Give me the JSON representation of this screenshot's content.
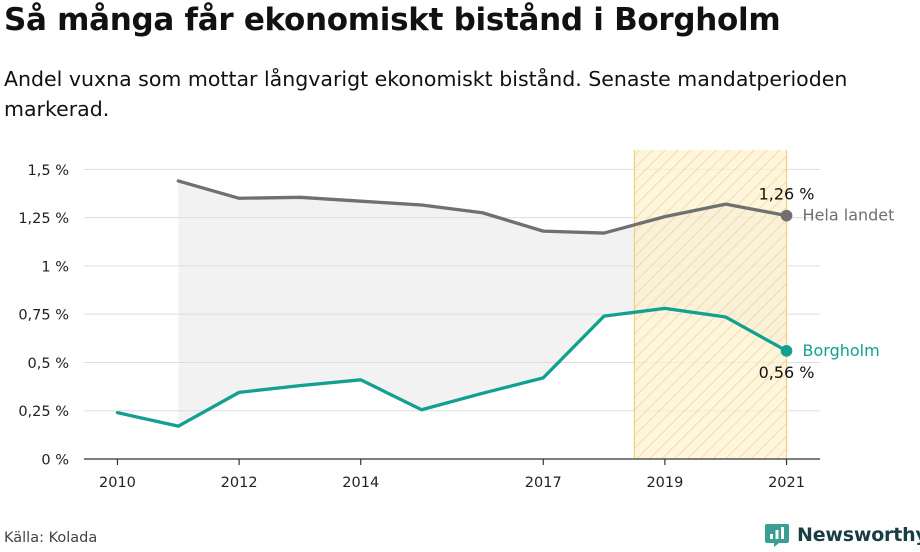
{
  "header": {
    "title": "Så många får ekonomiskt bistånd i Borgholm",
    "subtitle": "Andel vuxna som mottar långvarigt ekonomiskt bistånd. Senaste mandatperioden markerad."
  },
  "footer": {
    "source": "Källa: Kolada",
    "brand": "Newsworthy"
  },
  "icons": {
    "brand_logo": "newsworthy-logo-icon"
  },
  "colors": {
    "national": "#707070",
    "local": "#12a090",
    "highlight_fill": "#fbe8b8",
    "highlight_border": "#f2cf7a",
    "band_fill": "#f2f2f2",
    "grid": "#dddddd"
  },
  "chart_data": {
    "type": "line",
    "x": [
      2010,
      2011,
      2012,
      2013,
      2014,
      2015,
      2016,
      2017,
      2018,
      2019,
      2020,
      2021
    ],
    "x_ticks": [
      2010,
      2012,
      2014,
      2017,
      2019,
      2021
    ],
    "y_ticks": [
      {
        "value": 0,
        "label": "0 %"
      },
      {
        "value": 0.25,
        "label": "0,25 %"
      },
      {
        "value": 0.5,
        "label": "0,5 %"
      },
      {
        "value": 0.75,
        "label": "0,75 %"
      },
      {
        "value": 1,
        "label": "1 %"
      },
      {
        "value": 1.25,
        "label": "1,25 %"
      },
      {
        "value": 1.5,
        "label": "1,5 %"
      }
    ],
    "ylim": [
      0,
      1.6
    ],
    "xlim": [
      2009.45,
      2021.55
    ],
    "grid": true,
    "highlight_range": [
      2018.5,
      2021
    ],
    "series": [
      {
        "name": "Hela landet",
        "key": "national",
        "values": [
          null,
          1.44,
          1.35,
          1.355,
          1.335,
          1.315,
          1.275,
          1.18,
          1.17,
          1.255,
          1.32,
          1.26
        ],
        "end_label": "1,26 %"
      },
      {
        "name": "Borgholm",
        "key": "local",
        "values": [
          0.24,
          0.17,
          0.345,
          0.38,
          0.41,
          0.255,
          0.34,
          0.42,
          0.74,
          0.78,
          0.735,
          0.56
        ],
        "end_label": "0,56 %"
      }
    ]
  }
}
